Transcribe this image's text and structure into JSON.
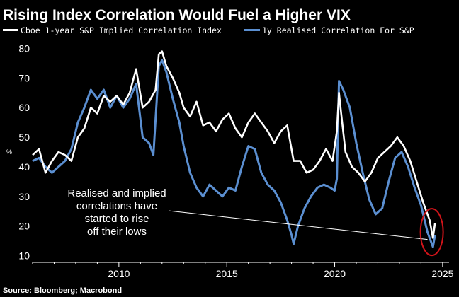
{
  "chart_data": {
    "type": "line",
    "title": "Rising Index Correlation Would Fuel a Higher VIX",
    "ylabel": "%",
    "xlabel": "",
    "xlim": [
      2006,
      2025.3
    ],
    "ylim": [
      8,
      82
    ],
    "x_ticks": [
      2010,
      2015,
      2020,
      2025
    ],
    "y_ticks": [
      10,
      20,
      30,
      40,
      50,
      60,
      70,
      80
    ],
    "legend": [
      {
        "name": "Cboe 1-year S&P Implied Correlation Index",
        "color": "#ffffff"
      },
      {
        "name": "1y Realised Correlation For S&P",
        "color": "#5b8fd1"
      }
    ],
    "annotation": {
      "lines": [
        "Realised and implied",
        "correlations have",
        "started to rise",
        "off their lows"
      ],
      "arrow_from": [
        2010.0,
        23.5
      ],
      "arrow_to": [
        2024.3,
        15.5
      ]
    },
    "highlight_circle": {
      "x": 2024.5,
      "y": 18
    },
    "source": "Source: Bloomberg; Macrobond",
    "series": [
      {
        "name": "Cboe 1-year S&P Implied Correlation Index",
        "color": "#ffffff",
        "x": [
          2006.0,
          2006.3,
          2006.6,
          2006.9,
          2007.2,
          2007.5,
          2007.8,
          2008.1,
          2008.4,
          2008.7,
          2009.0,
          2009.3,
          2009.6,
          2009.9,
          2010.2,
          2010.5,
          2010.8,
          2011.1,
          2011.4,
          2011.7,
          2011.85,
          2012.0,
          2012.2,
          2012.5,
          2012.8,
          2013.0,
          2013.3,
          2013.6,
          2013.9,
          2014.2,
          2014.5,
          2014.8,
          2015.1,
          2015.4,
          2015.7,
          2016.0,
          2016.3,
          2016.6,
          2016.9,
          2017.2,
          2017.5,
          2017.8,
          2018.1,
          2018.4,
          2018.7,
          2019.0,
          2019.3,
          2019.6,
          2019.9,
          2020.1,
          2020.2,
          2020.3,
          2020.5,
          2020.8,
          2021.1,
          2021.4,
          2021.7,
          2022.0,
          2022.3,
          2022.6,
          2022.9,
          2023.2,
          2023.5,
          2023.8,
          2024.1,
          2024.4,
          2024.55,
          2024.65
        ],
        "values": [
          44,
          46,
          38,
          42,
          45,
          44,
          42,
          50,
          53,
          60,
          58,
          64,
          62,
          64,
          61,
          65,
          73,
          60,
          62,
          66,
          78,
          79,
          74,
          70,
          65,
          60,
          57,
          62,
          54,
          55,
          52,
          56,
          58,
          53,
          50,
          55,
          58,
          55,
          52,
          48,
          52,
          54,
          42,
          42,
          38,
          39,
          42,
          46,
          42,
          52,
          65,
          58,
          45,
          40,
          38,
          35,
          38,
          43,
          45,
          47,
          50,
          47,
          42,
          35,
          28,
          22,
          16,
          21
        ]
      },
      {
        "name": "1y Realised Correlation For S&P",
        "color": "#5b8fd1",
        "x": [
          2006.0,
          2006.3,
          2006.6,
          2006.9,
          2007.2,
          2007.5,
          2007.8,
          2008.1,
          2008.4,
          2008.7,
          2009.0,
          2009.3,
          2009.6,
          2009.9,
          2010.2,
          2010.5,
          2010.8,
          2011.1,
          2011.4,
          2011.6,
          2011.85,
          2012.0,
          2012.2,
          2012.5,
          2012.8,
          2013.0,
          2013.3,
          2013.6,
          2013.9,
          2014.2,
          2014.5,
          2014.8,
          2015.1,
          2015.4,
          2015.7,
          2016.0,
          2016.3,
          2016.6,
          2016.9,
          2017.2,
          2017.5,
          2017.8,
          2018.0,
          2018.1,
          2018.3,
          2018.6,
          2018.9,
          2019.2,
          2019.5,
          2019.8,
          2020.0,
          2020.1,
          2020.2,
          2020.4,
          2020.7,
          2021.0,
          2021.3,
          2021.6,
          2021.9,
          2022.2,
          2022.5,
          2022.8,
          2023.1,
          2023.4,
          2023.7,
          2024.0,
          2024.3,
          2024.55,
          2024.65
        ],
        "values": [
          42,
          43,
          40,
          38,
          40,
          42,
          46,
          55,
          60,
          66,
          63,
          66,
          60,
          64,
          60,
          63,
          68,
          50,
          48,
          44,
          74,
          76,
          72,
          63,
          55,
          47,
          38,
          33,
          30,
          34,
          32,
          30,
          33,
          32,
          40,
          47,
          46,
          38,
          34,
          32,
          28,
          22,
          17,
          14,
          20,
          26,
          30,
          33,
          34,
          33,
          32,
          36,
          69,
          66,
          60,
          48,
          38,
          29,
          24,
          26,
          35,
          43,
          45,
          40,
          33,
          27,
          18,
          13,
          17
        ]
      }
    ]
  }
}
